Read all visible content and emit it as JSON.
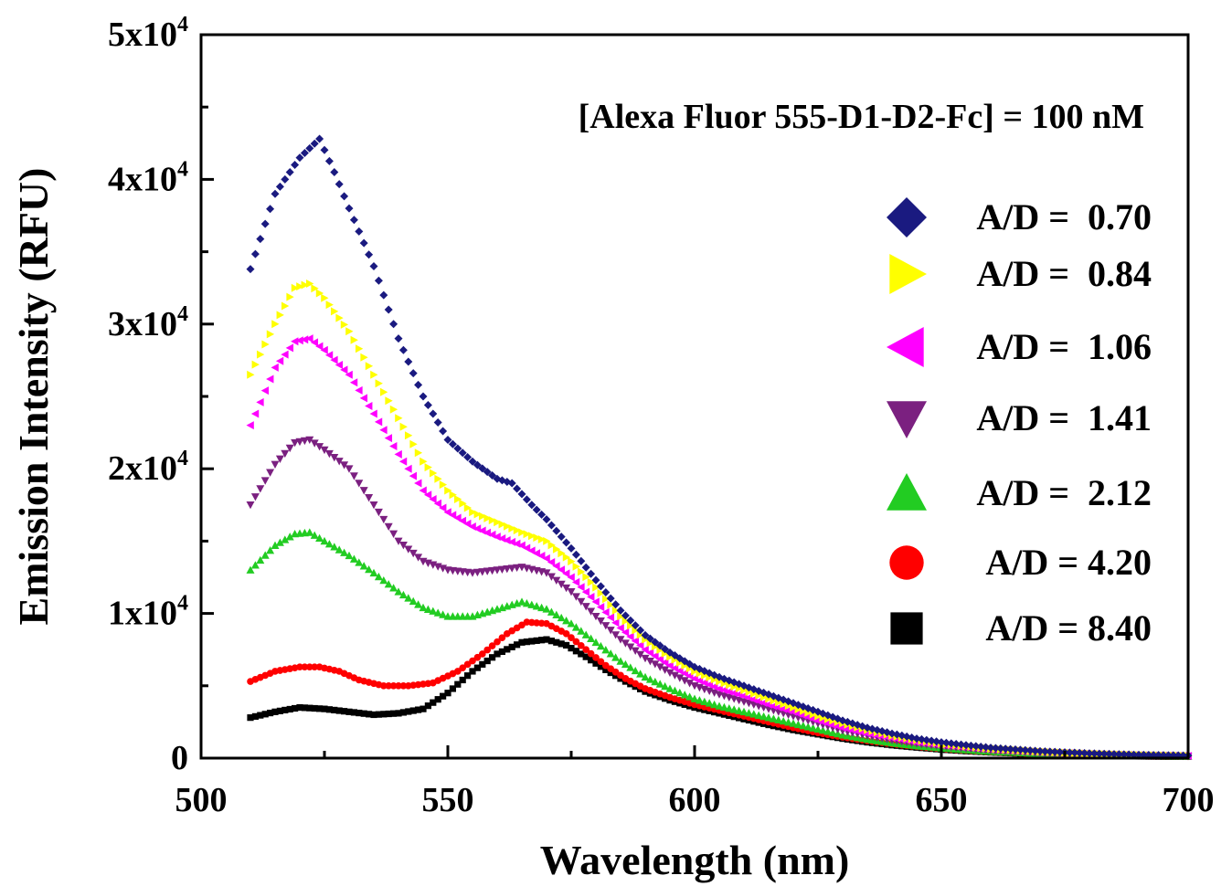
{
  "chart_data": {
    "type": "scatter",
    "title": "",
    "xlabel": "Wavelength (nm)",
    "ylabel": "Emission Intensity (RFU)",
    "annotation": "[Alexa Fluor 555-D1-D2-Fc] = 100 nM",
    "xlim": [
      500,
      700
    ],
    "ylim": [
      0,
      50000
    ],
    "x_ticks": [
      {
        "value": 500,
        "label": "500"
      },
      {
        "value": 550,
        "label": "550"
      },
      {
        "value": 600,
        "label": "600"
      },
      {
        "value": 650,
        "label": "650"
      },
      {
        "value": 700,
        "label": "700"
      }
    ],
    "y_ticks": [
      {
        "value": 0,
        "label": "0",
        "mantissa": "",
        "exponent": ""
      },
      {
        "value": 10000,
        "label": "1x10^4",
        "mantissa": "1x10",
        "exponent": "4"
      },
      {
        "value": 20000,
        "label": "2x10^4",
        "mantissa": "2x10",
        "exponent": "4"
      },
      {
        "value": 30000,
        "label": "3x10^4",
        "mantissa": "3x10",
        "exponent": "4"
      },
      {
        "value": 40000,
        "label": "4x10^4",
        "mantissa": "4x10",
        "exponent": "4"
      },
      {
        "value": 50000,
        "label": "5x10^4",
        "mantissa": "5x10",
        "exponent": "4"
      }
    ],
    "x_start": 510,
    "x_step": 1,
    "legend_placement": "right",
    "grid": false,
    "series": [
      {
        "name": "A/D =  0.70",
        "marker": "diamond",
        "color": "#1a1a80",
        "keypoints": [
          [
            510,
            33800
          ],
          [
            515,
            39000
          ],
          [
            520,
            41500
          ],
          [
            524,
            42800
          ],
          [
            527,
            40500
          ],
          [
            530,
            38000
          ],
          [
            535,
            34000
          ],
          [
            540,
            29000
          ],
          [
            545,
            25000
          ],
          [
            550,
            22000
          ],
          [
            555,
            20500
          ],
          [
            560,
            19300
          ],
          [
            563,
            19000
          ],
          [
            567,
            17500
          ],
          [
            570,
            16500
          ],
          [
            575,
            14500
          ],
          [
            580,
            12300
          ],
          [
            585,
            10200
          ],
          [
            590,
            8500
          ],
          [
            595,
            7300
          ],
          [
            600,
            6300
          ],
          [
            605,
            5600
          ],
          [
            610,
            5000
          ],
          [
            615,
            4400
          ],
          [
            620,
            3800
          ],
          [
            625,
            3200
          ],
          [
            630,
            2600
          ],
          [
            635,
            2100
          ],
          [
            640,
            1700
          ],
          [
            645,
            1350
          ],
          [
            650,
            1100
          ],
          [
            655,
            900
          ],
          [
            660,
            720
          ],
          [
            670,
            480
          ],
          [
            680,
            330
          ],
          [
            690,
            230
          ],
          [
            700,
            180
          ]
        ]
      },
      {
        "name": "A/D =  0.84",
        "marker": "triangle-right",
        "color": "#ffff00",
        "keypoints": [
          [
            510,
            26500
          ],
          [
            515,
            30000
          ],
          [
            519,
            32500
          ],
          [
            522,
            32800
          ],
          [
            525,
            31800
          ],
          [
            530,
            29500
          ],
          [
            535,
            26500
          ],
          [
            540,
            23500
          ],
          [
            545,
            20500
          ],
          [
            550,
            18500
          ],
          [
            555,
            17000
          ],
          [
            560,
            16300
          ],
          [
            565,
            15600
          ],
          [
            570,
            15000
          ],
          [
            575,
            13600
          ],
          [
            580,
            11800
          ],
          [
            585,
            9800
          ],
          [
            590,
            8200
          ],
          [
            595,
            7000
          ],
          [
            600,
            6000
          ],
          [
            605,
            5300
          ],
          [
            610,
            4700
          ],
          [
            615,
            4100
          ],
          [
            620,
            3500
          ],
          [
            625,
            2900
          ],
          [
            630,
            2400
          ],
          [
            635,
            1950
          ],
          [
            640,
            1550
          ],
          [
            645,
            1250
          ],
          [
            650,
            1000
          ],
          [
            655,
            820
          ],
          [
            660,
            650
          ],
          [
            670,
            440
          ],
          [
            680,
            300
          ],
          [
            690,
            210
          ],
          [
            700,
            160
          ]
        ]
      },
      {
        "name": "A/D =  1.06",
        "marker": "triangle-left",
        "color": "#ff00ff",
        "keypoints": [
          [
            510,
            23000
          ],
          [
            515,
            27000
          ],
          [
            519,
            28800
          ],
          [
            522,
            29000
          ],
          [
            525,
            28200
          ],
          [
            530,
            26500
          ],
          [
            535,
            23800
          ],
          [
            540,
            21000
          ],
          [
            545,
            18500
          ],
          [
            550,
            17000
          ],
          [
            555,
            16000
          ],
          [
            560,
            15300
          ],
          [
            565,
            14700
          ],
          [
            570,
            13800
          ],
          [
            575,
            12500
          ],
          [
            580,
            10800
          ],
          [
            585,
            9000
          ],
          [
            590,
            7500
          ],
          [
            595,
            6400
          ],
          [
            600,
            5500
          ],
          [
            605,
            4800
          ],
          [
            610,
            4300
          ],
          [
            615,
            3700
          ],
          [
            620,
            3200
          ],
          [
            625,
            2600
          ],
          [
            630,
            2100
          ],
          [
            635,
            1700
          ],
          [
            640,
            1400
          ],
          [
            645,
            1100
          ],
          [
            650,
            900
          ],
          [
            655,
            740
          ],
          [
            660,
            590
          ],
          [
            670,
            400
          ],
          [
            680,
            280
          ],
          [
            690,
            200
          ],
          [
            700,
            150
          ]
        ]
      },
      {
        "name": "A/D =  1.41",
        "marker": "triangle-down",
        "color": "#7b2080",
        "keypoints": [
          [
            510,
            17500
          ],
          [
            515,
            20300
          ],
          [
            519,
            21800
          ],
          [
            522,
            22000
          ],
          [
            525,
            21300
          ],
          [
            530,
            20000
          ],
          [
            535,
            17500
          ],
          [
            540,
            15000
          ],
          [
            545,
            13600
          ],
          [
            550,
            13000
          ],
          [
            555,
            12800
          ],
          [
            560,
            13000
          ],
          [
            565,
            13200
          ],
          [
            570,
            12800
          ],
          [
            575,
            11500
          ],
          [
            580,
            9800
          ],
          [
            585,
            8200
          ],
          [
            590,
            6900
          ],
          [
            595,
            5900
          ],
          [
            600,
            5000
          ],
          [
            605,
            4400
          ],
          [
            610,
            3900
          ],
          [
            615,
            3400
          ],
          [
            620,
            2900
          ],
          [
            625,
            2400
          ],
          [
            630,
            1900
          ],
          [
            635,
            1550
          ],
          [
            640,
            1250
          ],
          [
            645,
            1000
          ],
          [
            650,
            820
          ],
          [
            655,
            670
          ],
          [
            660,
            540
          ],
          [
            670,
            370
          ],
          [
            680,
            260
          ],
          [
            690,
            180
          ],
          [
            700,
            140
          ]
        ]
      },
      {
        "name": "A/D =  2.12",
        "marker": "triangle-up",
        "color": "#22cc22",
        "keypoints": [
          [
            510,
            13000
          ],
          [
            515,
            14700
          ],
          [
            519,
            15500
          ],
          [
            522,
            15600
          ],
          [
            525,
            15000
          ],
          [
            530,
            14000
          ],
          [
            535,
            12800
          ],
          [
            540,
            11500
          ],
          [
            545,
            10400
          ],
          [
            550,
            9800
          ],
          [
            555,
            9800
          ],
          [
            560,
            10300
          ],
          [
            565,
            10800
          ],
          [
            570,
            10300
          ],
          [
            575,
            9300
          ],
          [
            580,
            8000
          ],
          [
            585,
            6700
          ],
          [
            590,
            5600
          ],
          [
            595,
            4800
          ],
          [
            600,
            4100
          ],
          [
            605,
            3600
          ],
          [
            610,
            3200
          ],
          [
            615,
            2800
          ],
          [
            620,
            2400
          ],
          [
            625,
            2000
          ],
          [
            630,
            1600
          ],
          [
            635,
            1300
          ],
          [
            640,
            1050
          ],
          [
            645,
            850
          ],
          [
            650,
            700
          ],
          [
            655,
            570
          ],
          [
            660,
            460
          ],
          [
            670,
            320
          ],
          [
            680,
            220
          ],
          [
            690,
            160
          ],
          [
            700,
            120
          ]
        ]
      },
      {
        "name": "A/D = 4.20",
        "marker": "circle",
        "color": "#ff0000",
        "keypoints": [
          [
            510,
            5300
          ],
          [
            515,
            6000
          ],
          [
            520,
            6300
          ],
          [
            524,
            6300
          ],
          [
            528,
            6000
          ],
          [
            532,
            5400
          ],
          [
            537,
            5000
          ],
          [
            542,
            5000
          ],
          [
            547,
            5200
          ],
          [
            552,
            6000
          ],
          [
            557,
            7200
          ],
          [
            562,
            8600
          ],
          [
            566,
            9400
          ],
          [
            570,
            9300
          ],
          [
            574,
            8600
          ],
          [
            578,
            7500
          ],
          [
            582,
            6400
          ],
          [
            586,
            5500
          ],
          [
            590,
            4800
          ],
          [
            595,
            4200
          ],
          [
            600,
            3700
          ],
          [
            605,
            3300
          ],
          [
            610,
            2900
          ],
          [
            615,
            2500
          ],
          [
            620,
            2100
          ],
          [
            625,
            1750
          ],
          [
            630,
            1450
          ],
          [
            635,
            1200
          ],
          [
            640,
            980
          ],
          [
            645,
            800
          ],
          [
            650,
            650
          ],
          [
            655,
            530
          ],
          [
            660,
            430
          ],
          [
            670,
            290
          ],
          [
            680,
            200
          ],
          [
            690,
            140
          ],
          [
            700,
            110
          ]
        ]
      },
      {
        "name": "A/D = 8.40",
        "marker": "square",
        "color": "#000000",
        "keypoints": [
          [
            510,
            2800
          ],
          [
            515,
            3200
          ],
          [
            520,
            3500
          ],
          [
            525,
            3400
          ],
          [
            530,
            3200
          ],
          [
            535,
            3000
          ],
          [
            540,
            3100
          ],
          [
            545,
            3400
          ],
          [
            550,
            4500
          ],
          [
            555,
            6000
          ],
          [
            560,
            7200
          ],
          [
            565,
            8000
          ],
          [
            570,
            8200
          ],
          [
            574,
            7800
          ],
          [
            578,
            7000
          ],
          [
            582,
            6100
          ],
          [
            586,
            5300
          ],
          [
            590,
            4600
          ],
          [
            595,
            4000
          ],
          [
            600,
            3500
          ],
          [
            605,
            3100
          ],
          [
            610,
            2700
          ],
          [
            615,
            2300
          ],
          [
            620,
            1950
          ],
          [
            625,
            1650
          ],
          [
            630,
            1350
          ],
          [
            635,
            1100
          ],
          [
            640,
            900
          ],
          [
            645,
            740
          ],
          [
            650,
            600
          ],
          [
            655,
            490
          ],
          [
            660,
            400
          ],
          [
            670,
            270
          ],
          [
            680,
            190
          ],
          [
            690,
            130
          ],
          [
            700,
            100
          ]
        ]
      }
    ]
  }
}
